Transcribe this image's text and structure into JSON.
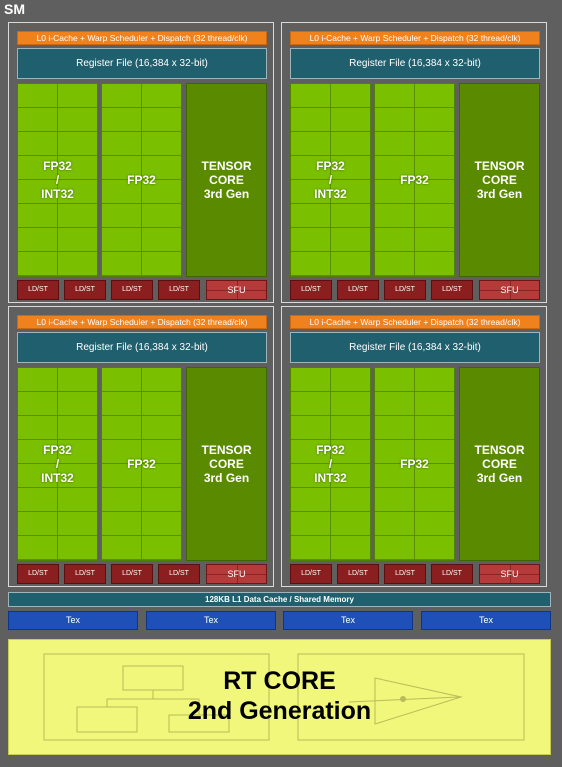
{
  "title": "SM",
  "dispatch_label": "L0 i-Cache + Warp Scheduler + Dispatch (32 thread/clk)",
  "register_file_label": "Register File (16,384 x 32-bit)",
  "fp32_int32_label": "FP32\n/\nINT32",
  "fp32_label": "FP32",
  "tensor_label": "TENSOR\nCORE\n3rd Gen",
  "ldst_label": "LD/ST",
  "sfu_label": "SFU",
  "l1_label": "128KB L1 Data Cache / Shared Memory",
  "tex_label": "Tex",
  "rt_core_label": "RT CORE\n2nd Generation",
  "colors": {
    "background": "#5f5f5f",
    "dispatch": "#f0821e",
    "register_file": "#1f5f6e",
    "fp_core": "#7ac000",
    "tensor_core": "#5a8a00",
    "ldst": "#8b1f1f",
    "sfu": "#b53a3a",
    "tex": "#1f50b8",
    "rt_core": "#f1f77a"
  }
}
